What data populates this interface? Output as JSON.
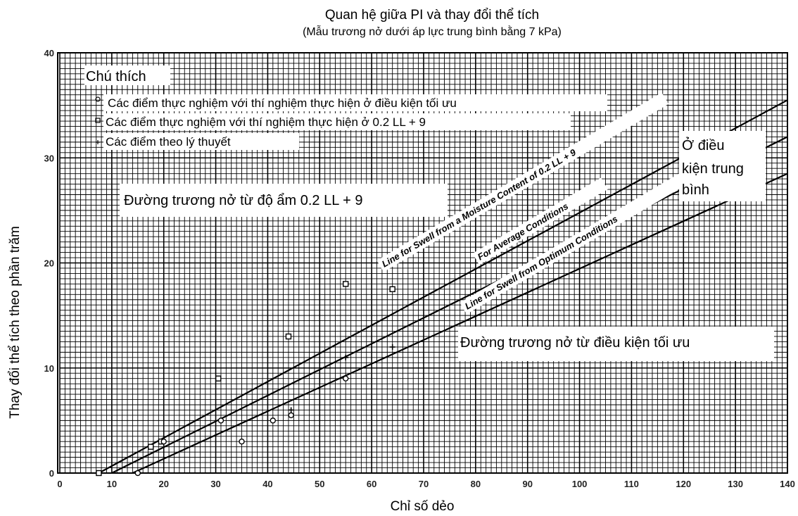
{
  "chart_data": {
    "type": "scatter",
    "title": "Quan hệ giữa PI và thay đổi thể tích",
    "subtitle": "(Mẫu trương nở dưới áp lực trung bình bằng 7 kPa)",
    "xlabel": "Chỉ số dẻo",
    "ylabel": "Thay đổi thể tích theo phần trăm",
    "xlim": [
      0,
      140
    ],
    "ylim": [
      0,
      40
    ],
    "xticks": [
      "0",
      "10",
      "20",
      "30",
      "40",
      "50",
      "60",
      "70",
      "80",
      "90",
      "100",
      "110",
      "120",
      "130",
      "140"
    ],
    "yticks": [
      "0",
      "10",
      "20",
      "30",
      "40"
    ],
    "grid": true,
    "legend_title": "Chú thích",
    "legend_items": [
      "Các điểm thực nghiệm với thí nghiệm thực hiện ở điều kiện tối ưu",
      "Các điểm thực nghiệm với thí nghiệm thực hiện ở 0.2 LL + 9",
      "Các điểm theo lý thuyết"
    ],
    "lines": [
      {
        "label": "Line for Swell from a Moisture Content of 0.2 LL + 9",
        "x": [
          7.5,
          140
        ],
        "y": [
          0,
          35.5
        ]
      },
      {
        "label": "For Average Conditions",
        "x": [
          10,
          140
        ],
        "y": [
          0,
          32
        ]
      },
      {
        "label": "Line for Swell from Optimum Conditions",
        "x": [
          14,
          140
        ],
        "y": [
          0,
          28.5
        ]
      }
    ],
    "series": [
      {
        "x": [
          7.5,
          17.5,
          19.5,
          30.5,
          44,
          55,
          64
        ],
        "y": [
          0,
          2.5,
          3,
          9,
          13,
          18,
          17.5
        ]
      },
      {
        "x": [
          15,
          20,
          31,
          35,
          41,
          44.5,
          55
        ],
        "y": [
          0,
          3,
          5,
          3,
          5,
          5.5,
          9
        ]
      },
      {
        "x": [
          44.5,
          55,
          64
        ],
        "y": [
          6,
          11,
          12
        ]
      }
    ],
    "annotations": {
      "moist_line": "Đường trương nở từ độ ẩm 0.2 LL + 9",
      "avg_line": "Ở điều kiện trung bình",
      "avg_line_parts": [
        "Ở điều",
        "kiện trung",
        "bình"
      ],
      "opt_line": "Đường trương nở từ điều kiện tối ưu"
    }
  }
}
